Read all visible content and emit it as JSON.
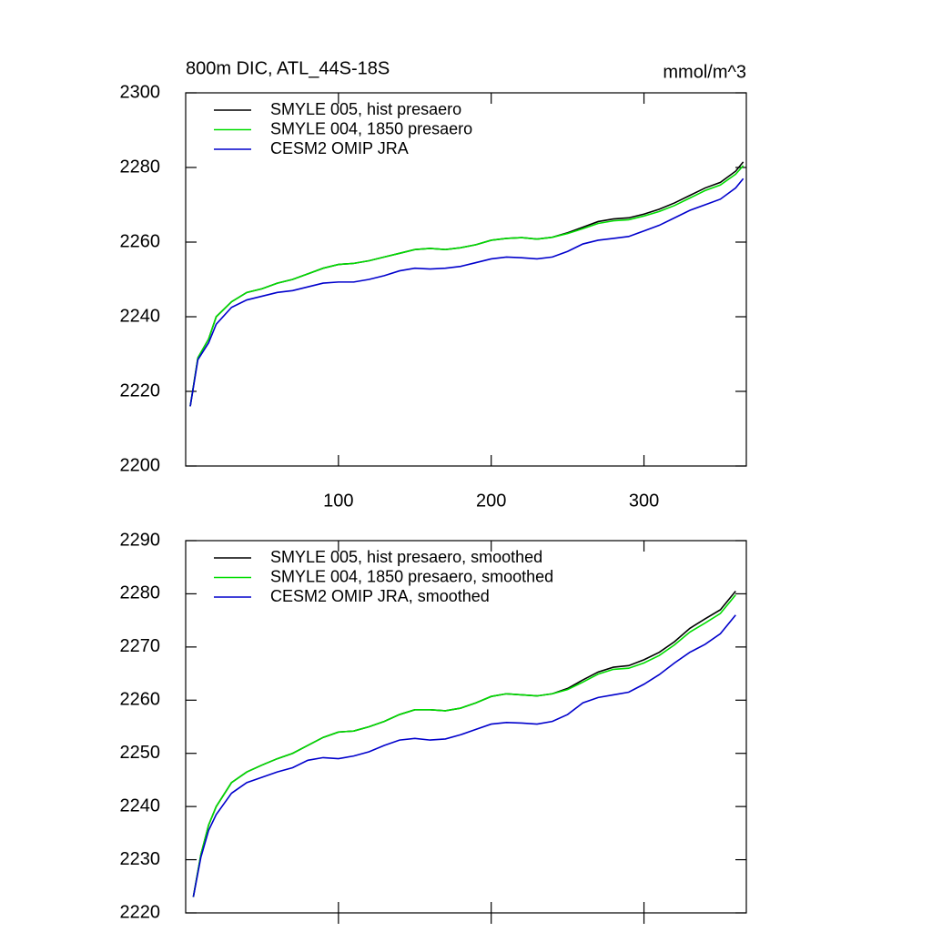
{
  "chart_data": [
    {
      "type": "line",
      "title": "800m DIC, ATL_44S-18S",
      "units": "mmol/m^3",
      "x": [
        3,
        8,
        15,
        20,
        30,
        40,
        50,
        60,
        70,
        80,
        90,
        100,
        110,
        120,
        130,
        140,
        150,
        160,
        170,
        180,
        190,
        200,
        210,
        220,
        230,
        240,
        250,
        260,
        270,
        280,
        290,
        300,
        310,
        320,
        330,
        340,
        350,
        360,
        365
      ],
      "series": [
        {
          "name": "SMYLE 005, hist presaero",
          "color": "#000000",
          "values": [
            2216,
            2229,
            2234,
            2240,
            2244,
            2246.5,
            2247.5,
            2249,
            2250,
            2251.5,
            2253,
            2254,
            2254.3,
            2255,
            2256,
            2257,
            2258,
            2258.3,
            2258,
            2258.5,
            2259.3,
            2260.5,
            2261,
            2261.2,
            2260.8,
            2261.3,
            2262.5,
            2264,
            2265.5,
            2266.2,
            2266.5,
            2267.5,
            2268.8,
            2270.5,
            2272.5,
            2274.5,
            2276,
            2279,
            2281.5
          ]
        },
        {
          "name": "SMYLE 004, 1850 presaero",
          "color": "#00dd00",
          "values": [
            2216,
            2229,
            2234,
            2240,
            2244,
            2246.5,
            2247.5,
            2249,
            2250,
            2251.5,
            2253,
            2254,
            2254.3,
            2255,
            2256,
            2257,
            2258,
            2258.3,
            2258,
            2258.5,
            2259.3,
            2260.5,
            2261,
            2261.2,
            2260.8,
            2261.3,
            2262.3,
            2263.6,
            2265,
            2265.7,
            2266,
            2267,
            2268.2,
            2269.8,
            2271.8,
            2273.8,
            2275.3,
            2278.2,
            2280.5
          ]
        },
        {
          "name": "CESM2 OMIP JRA",
          "color": "#0000cc",
          "values": [
            2216,
            2228.5,
            2233,
            2238,
            2242.5,
            2244.5,
            2245.5,
            2246.5,
            2247,
            2248,
            2249,
            2249.3,
            2249.3,
            2250,
            2251,
            2252.3,
            2253,
            2252.8,
            2253,
            2253.5,
            2254.5,
            2255.5,
            2256,
            2255.8,
            2255.5,
            2256,
            2257.5,
            2259.5,
            2260.5,
            2261,
            2261.5,
            2263,
            2264.5,
            2266.5,
            2268.5,
            2270,
            2271.5,
            2274.5,
            2277
          ]
        }
      ],
      "xlim": [
        0,
        367
      ],
      "xticks": [
        100,
        200,
        300
      ],
      "ylim": [
        2200,
        2300
      ],
      "yticks": [
        2200,
        2220,
        2240,
        2260,
        2280,
        2300
      ]
    },
    {
      "type": "line",
      "x": [
        5,
        10,
        15,
        20,
        30,
        40,
        50,
        60,
        70,
        80,
        90,
        100,
        110,
        120,
        130,
        140,
        150,
        160,
        170,
        180,
        190,
        200,
        210,
        220,
        230,
        240,
        250,
        260,
        270,
        280,
        290,
        300,
        310,
        320,
        330,
        340,
        350,
        360
      ],
      "series": [
        {
          "name": "SMYLE 005, hist presaero, smoothed",
          "color": "#000000",
          "values": [
            2223,
            2231,
            2236.5,
            2240,
            2244.5,
            2246.5,
            2247.8,
            2249,
            2250,
            2251.5,
            2253,
            2254,
            2254.2,
            2255,
            2256,
            2257.3,
            2258.2,
            2258.2,
            2258,
            2258.5,
            2259.5,
            2260.7,
            2261.2,
            2261,
            2260.8,
            2261.2,
            2262.2,
            2263.8,
            2265.3,
            2266.2,
            2266.5,
            2267.6,
            2269,
            2271,
            2273.5,
            2275.3,
            2277,
            2280.5
          ]
        },
        {
          "name": "SMYLE 004, 1850 presaero, smoothed",
          "color": "#00dd00",
          "values": [
            2223,
            2231,
            2236.5,
            2240,
            2244.5,
            2246.5,
            2247.8,
            2249,
            2250,
            2251.5,
            2253,
            2254,
            2254.2,
            2255,
            2256,
            2257.3,
            2258.2,
            2258.2,
            2258,
            2258.5,
            2259.5,
            2260.7,
            2261.2,
            2261,
            2260.8,
            2261.2,
            2262,
            2263.4,
            2264.9,
            2265.8,
            2266,
            2267,
            2268.4,
            2270.4,
            2272.8,
            2274.5,
            2276.3,
            2279.8
          ]
        },
        {
          "name": "CESM2 OMIP JRA, smoothed",
          "color": "#0000cc",
          "values": [
            2223,
            2230.5,
            2235.5,
            2238.5,
            2242.5,
            2244.5,
            2245.5,
            2246.5,
            2247.3,
            2248.7,
            2249.2,
            2249,
            2249.5,
            2250.3,
            2251.5,
            2252.5,
            2252.8,
            2252.5,
            2252.7,
            2253.5,
            2254.5,
            2255.5,
            2255.8,
            2255.7,
            2255.5,
            2256,
            2257.3,
            2259.5,
            2260.5,
            2261,
            2261.5,
            2263,
            2264.8,
            2267,
            2269,
            2270.5,
            2272.5,
            2276
          ]
        }
      ],
      "xlim": [
        0,
        367
      ],
      "xticks": [
        100,
        200,
        300
      ],
      "ylim": [
        2220,
        2290
      ],
      "yticks": [
        2220,
        2230,
        2240,
        2250,
        2260,
        2270,
        2280,
        2290
      ]
    }
  ]
}
